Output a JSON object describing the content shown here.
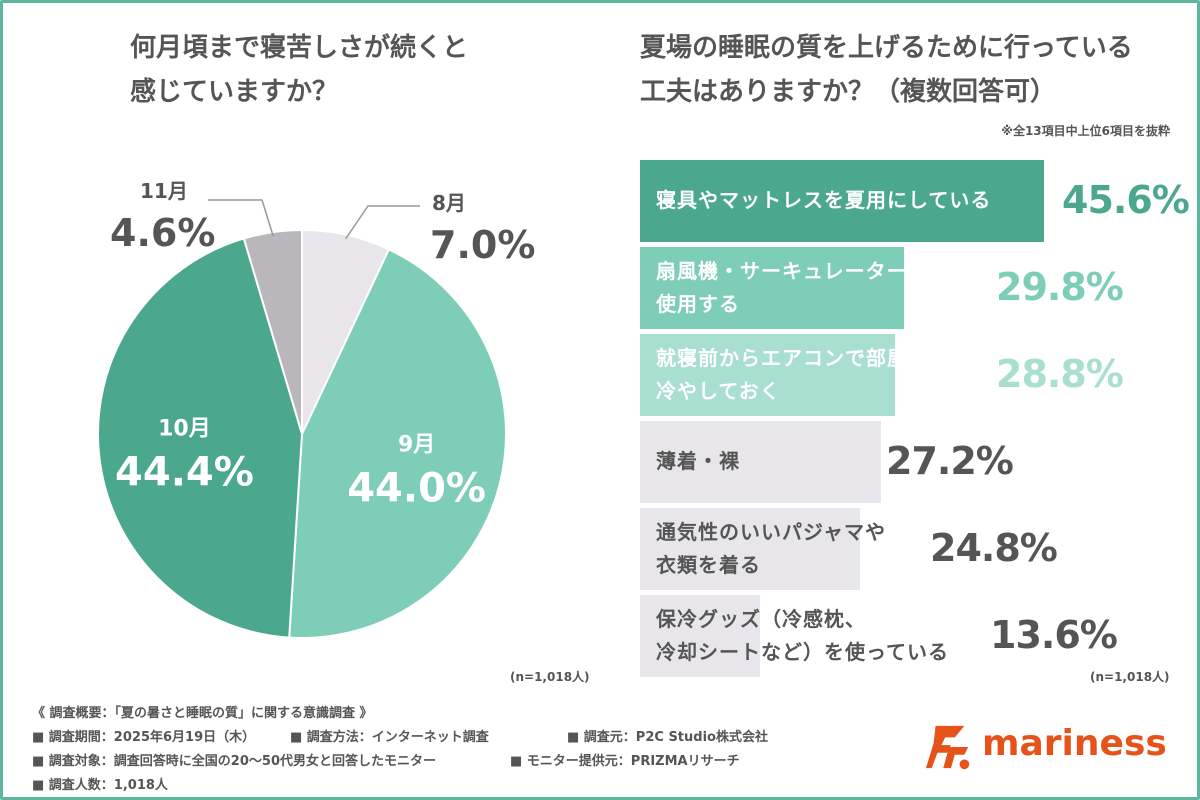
{
  "left_title": [
    "何月頃まで寝苦しさが続くと",
    "感じていますか？"
  ],
  "right_title": [
    "夏場の睡眠の質を上げるために行っている",
    "工夫はありますか？（複数回答可）"
  ],
  "right_note": "※全13項目中上位6項目を抜粋",
  "n_left": "(n=1,018人)",
  "n_right": "(n=1,018人)",
  "chart_data": [
    {
      "type": "pie",
      "title": "何月頃まで寝苦しさが続くと感じていますか？",
      "slices": [
        {
          "label": "8月",
          "value": 7.0,
          "value_text": "7.0%",
          "color": "#e8e6ea"
        },
        {
          "label": "9月",
          "value": 44.0,
          "value_text": "44.0%",
          "color": "#7ecdb8"
        },
        {
          "label": "10月",
          "value": 44.4,
          "value_text": "44.4%",
          "color": "#4ba88f"
        },
        {
          "label": "11月",
          "value": 4.6,
          "value_text": "4.6%",
          "color": "#b9b7bc"
        }
      ]
    },
    {
      "type": "bar",
      "orientation": "horizontal",
      "title": "夏場の睡眠の質を上げるために行っている工夫はありますか？（複数回答可）",
      "xlim": [
        0,
        45.6
      ],
      "bars": [
        {
          "label": [
            "寝具やマットレスを夏用にしている"
          ],
          "value": 45.6,
          "value_text": "45.6%",
          "color": "#4ba88f",
          "label_color": "#ffffff",
          "value_color": "#4ba88f"
        },
        {
          "label": [
            "扇風機・サーキュレーターを",
            "使用する"
          ],
          "value": 29.8,
          "value_text": "29.8%",
          "color": "#7ecdb8",
          "label_color": "#ffffff",
          "value_color": "#7ecdb8"
        },
        {
          "label": [
            "就寝前からエアコンで部屋を",
            "冷やしておく"
          ],
          "value": 28.8,
          "value_text": "28.8%",
          "color": "#a8dfd0",
          "label_color": "#ffffff",
          "value_color": "#a8dfd0"
        },
        {
          "label": [
            "薄着・裸"
          ],
          "value": 27.2,
          "value_text": "27.2%",
          "color": "#e8e6ea",
          "label_color": "#555555",
          "value_color": "#555555"
        },
        {
          "label": [
            "通気性のいいパジャマや",
            "衣類を着る"
          ],
          "value": 24.8,
          "value_text": "24.8%",
          "color": "#e8e6ea",
          "label_color": "#555555",
          "value_color": "#555555"
        },
        {
          "label": [
            "保冷グッズ（冷感枕、",
            "冷却シートなど）を使っている"
          ],
          "value": 13.6,
          "value_text": "13.6%",
          "color": "#e8e6ea",
          "label_color": "#555555",
          "value_color": "#555555"
        }
      ]
    }
  ],
  "survey": {
    "heading": "《 調査概要：「夏の暑さと睡眠の質」に関する意識調査 》",
    "period": "■ 調査期間：2025年6月19日（木）",
    "method": "■ 調査方法：インターネット調査",
    "source": "■ 調査元：P2C Studio株式会社",
    "target": "■ 調査対象：調査回答時に全国の20〜50代男女と回答したモニター",
    "provider": "■ モニター提供元：PRIZMAリサーチ",
    "count": "■ 調査人数：1,018人"
  },
  "brand": {
    "name": "mariness",
    "color": "#e5531a",
    "icon": "mariness-logo-icon"
  },
  "frame_color": "#5bb59f"
}
